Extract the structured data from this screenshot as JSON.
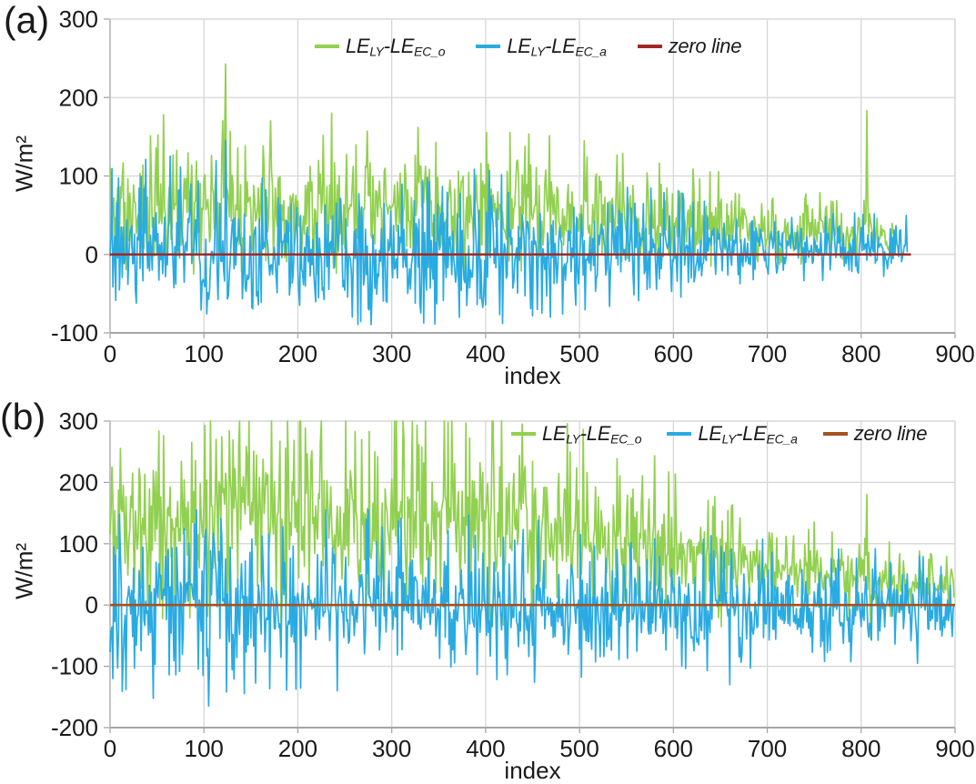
{
  "figure": {
    "background": "#ffffff",
    "text_color": "#1a1a1a",
    "grid_color": "#d6d6d6",
    "axis_color": "#a6a6a6"
  },
  "chart_data": [
    {
      "id": "a",
      "type": "line",
      "panel_label": "(a)",
      "xlabel": "index",
      "ylabel": "W/m²",
      "xlim": [
        0,
        900
      ],
      "ylim": [
        -100,
        300
      ],
      "x_ticks": [
        0,
        100,
        200,
        300,
        400,
        500,
        600,
        700,
        800,
        900
      ],
      "y_ticks": [
        300,
        200,
        100,
        0,
        -100
      ],
      "grid": true,
      "legend_position": "top-center-inside",
      "series": [
        {
          "name": "LE_LY-LE_EC_o",
          "label_parts": [
            [
              "t",
              "LE"
            ],
            [
              "s",
              "LY"
            ],
            [
              "t",
              "-LE"
            ],
            [
              "s",
              "EC_o"
            ]
          ],
          "color": "#92D050",
          "n": 835,
          "seed": 11,
          "env_mean": [
            [
              0,
              65
            ],
            [
              150,
              60
            ],
            [
              300,
              55
            ],
            [
              450,
              55
            ],
            [
              550,
              40
            ],
            [
              700,
              32
            ],
            [
              835,
              22
            ]
          ],
          "env_amp": [
            [
              0,
              58
            ],
            [
              150,
              55
            ],
            [
              300,
              52
            ],
            [
              500,
              48
            ],
            [
              600,
              38
            ],
            [
              700,
              33
            ],
            [
              835,
              20
            ]
          ],
          "spikes": [
            [
              0,
              110
            ],
            [
              57,
              178
            ],
            [
              123,
              243
            ],
            [
              236,
              180
            ],
            [
              328,
              162
            ],
            [
              806,
              183
            ]
          ],
          "clip": [
            -25,
            245
          ],
          "summary": "Noisy difference series, mostly 0 to 180 W/m2, mean near 50, maximum 243 at index 123, secondary spike 183 at index 806, data end near index 835"
        },
        {
          "name": "LE_LY-LE_EC_a",
          "label_parts": [
            [
              "t",
              "LE"
            ],
            [
              "s",
              "LY"
            ],
            [
              "t",
              "-LE"
            ],
            [
              "s",
              "EC_a"
            ]
          ],
          "color": "#29ABE2",
          "n": 850,
          "seed": 47,
          "env_mean": [
            [
              0,
              18
            ],
            [
              120,
              12
            ],
            [
              250,
              0
            ],
            [
              420,
              -8
            ],
            [
              550,
              4
            ],
            [
              700,
              6
            ],
            [
              850,
              5
            ]
          ],
          "env_amp": [
            [
              0,
              55
            ],
            [
              200,
              52
            ],
            [
              400,
              55
            ],
            [
              550,
              42
            ],
            [
              700,
              32
            ],
            [
              850,
              22
            ]
          ],
          "spikes": [
            [
              28,
              -62
            ],
            [
              123,
              145
            ],
            [
              372,
              -80
            ],
            [
              418,
              -88
            ],
            [
              460,
              -75
            ]
          ],
          "clip": [
            -95,
            160
          ],
          "summary": "Noisy difference series oscillating about zero, range about -90 to +150 W/m2, maximum 145 at index 123, minimum -88 near index 418, data end near index 850"
        },
        {
          "name": "zero line",
          "label_parts": [
            [
              "t",
              "zero line"
            ]
          ],
          "color": "#9E2B25",
          "constant": 0,
          "x_range": [
            0,
            853
          ],
          "summary": "Horizontal reference line at 0 W/m2"
        }
      ]
    },
    {
      "id": "b",
      "type": "line",
      "panel_label": "(b)",
      "xlabel": "index",
      "ylabel": "W/m²",
      "xlim": [
        0,
        900
      ],
      "ylim": [
        -200,
        300
      ],
      "x_ticks": [
        0,
        100,
        200,
        300,
        400,
        500,
        600,
        700,
        800,
        900
      ],
      "y_ticks": [
        300,
        200,
        100,
        0,
        -100,
        -200
      ],
      "grid": true,
      "legend_position": "top-right-inside",
      "series": [
        {
          "name": "LE_LY-LE_EC_o",
          "label_parts": [
            [
              "t",
              "LE"
            ],
            [
              "s",
              "LY"
            ],
            [
              "t",
              "-LE"
            ],
            [
              "s",
              "EC_o"
            ]
          ],
          "color": "#92D050",
          "n": 900,
          "seed": 83,
          "env_mean": [
            [
              0,
              120
            ],
            [
              100,
              140
            ],
            [
              380,
              150
            ],
            [
              450,
              120
            ],
            [
              550,
              95
            ],
            [
              650,
              65
            ],
            [
              750,
              50
            ],
            [
              850,
              35
            ],
            [
              900,
              28
            ]
          ],
          "env_amp": [
            [
              0,
              85
            ],
            [
              100,
              105
            ],
            [
              380,
              110
            ],
            [
              480,
              90
            ],
            [
              580,
              75
            ],
            [
              680,
              55
            ],
            [
              780,
              42
            ],
            [
              900,
              25
            ]
          ],
          "spikes": [
            [
              2,
              225
            ],
            [
              360,
              298
            ],
            [
              806,
              180
            ],
            [
              810,
              -55
            ]
          ],
          "clip": [
            -60,
            300
          ],
          "summary": "Large positive noisy series, peaks reach 300 W/m2 between index 130 and 390, envelope decays after index 400 to roughly 0-70 W/m2 by index 900, isolated spike 180 at index 806"
        },
        {
          "name": "LE_LY-LE_EC_a",
          "label_parts": [
            [
              "t",
              "LE"
            ],
            [
              "s",
              "LY"
            ],
            [
              "t",
              "-LE"
            ],
            [
              "s",
              "EC_a"
            ]
          ],
          "color": "#29ABE2",
          "n": 900,
          "seed": 29,
          "env_mean": [
            [
              0,
              5
            ],
            [
              150,
              0
            ],
            [
              400,
              -5
            ],
            [
              600,
              -10
            ],
            [
              900,
              -8
            ]
          ],
          "env_amp": [
            [
              0,
              95
            ],
            [
              150,
              85
            ],
            [
              400,
              75
            ],
            [
              600,
              62
            ],
            [
              750,
              52
            ],
            [
              900,
              45
            ]
          ],
          "spikes": [
            [
              3,
              -120
            ],
            [
              10,
              148
            ],
            [
              105,
              -165
            ],
            [
              660,
              -130
            ],
            [
              860,
              -95
            ]
          ],
          "clip": [
            -195,
            155
          ],
          "summary": "Noisy series oscillating about zero, range about -120 to +150 W/m2 early, minimum -165 at index 105, secondary dip -130 at index 660, amplitude shrinks to about ±60 by index 900"
        },
        {
          "name": "zero line",
          "label_parts": [
            [
              "t",
              "zero line"
            ]
          ],
          "color": "#A6511E",
          "constant": 0,
          "x_range": [
            0,
            900
          ],
          "summary": "Horizontal reference line at 0 W/m2"
        }
      ]
    }
  ]
}
